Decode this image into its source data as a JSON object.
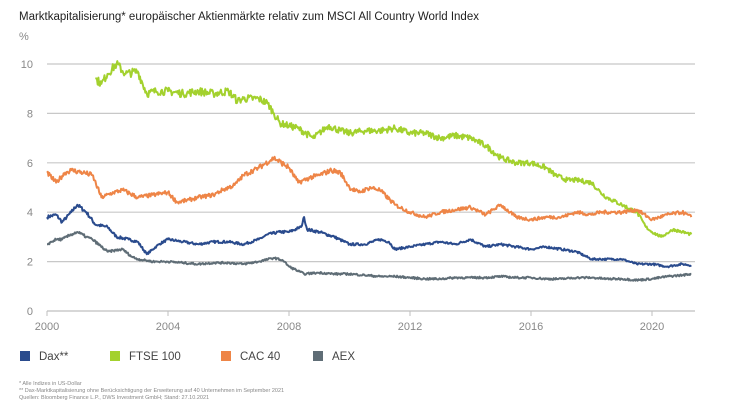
{
  "chart_data": {
    "type": "line",
    "title": "Marktkapitalisierung* europäischer Aktienmärkte relativ zum MSCI All Country World Index",
    "ylabel": "%",
    "xlabel": "",
    "xlim": [
      2000,
      2021.4
    ],
    "ylim": [
      0,
      10
    ],
    "yticks": [
      0,
      2,
      4,
      6,
      8,
      10
    ],
    "xticks": [
      2000,
      2004,
      2008,
      2012,
      2016,
      2020
    ],
    "grid": true,
    "legend_position": "bottom-left",
    "series": [
      {
        "name": "Dax**",
        "color": "#2a4b8d",
        "points": [
          [
            2000,
            3.8
          ],
          [
            2000.3,
            3.9
          ],
          [
            2000.5,
            3.6
          ],
          [
            2000.8,
            4.0
          ],
          [
            2001,
            4.3
          ],
          [
            2001.3,
            4.0
          ],
          [
            2001.6,
            3.5
          ],
          [
            2002,
            3.4
          ],
          [
            2002.3,
            3.0
          ],
          [
            2002.7,
            2.9
          ],
          [
            2003,
            2.8
          ],
          [
            2003.3,
            2.3
          ],
          [
            2003.7,
            2.7
          ],
          [
            2004,
            2.9
          ],
          [
            2004.5,
            2.8
          ],
          [
            2005,
            2.7
          ],
          [
            2005.5,
            2.8
          ],
          [
            2006,
            2.8
          ],
          [
            2006.5,
            2.7
          ],
          [
            2007,
            2.9
          ],
          [
            2007.3,
            3.1
          ],
          [
            2007.7,
            3.2
          ],
          [
            2008,
            3.2
          ],
          [
            2008.4,
            3.4
          ],
          [
            2008.5,
            3.8
          ],
          [
            2008.6,
            3.3
          ],
          [
            2009,
            3.2
          ],
          [
            2009.5,
            3.0
          ],
          [
            2010,
            2.7
          ],
          [
            2010.5,
            2.7
          ],
          [
            2011,
            2.9
          ],
          [
            2011.3,
            2.8
          ],
          [
            2011.5,
            2.5
          ],
          [
            2012,
            2.6
          ],
          [
            2012.5,
            2.7
          ],
          [
            2013,
            2.8
          ],
          [
            2013.5,
            2.7
          ],
          [
            2014,
            2.9
          ],
          [
            2014.5,
            2.6
          ],
          [
            2015,
            2.7
          ],
          [
            2015.5,
            2.6
          ],
          [
            2016,
            2.5
          ],
          [
            2016.5,
            2.6
          ],
          [
            2017,
            2.5
          ],
          [
            2017.5,
            2.4
          ],
          [
            2018,
            2.1
          ],
          [
            2018.5,
            2.1
          ],
          [
            2019,
            2.1
          ],
          [
            2019.5,
            1.9
          ],
          [
            2020,
            1.9
          ],
          [
            2020.5,
            1.8
          ],
          [
            2021,
            1.9
          ],
          [
            2021.3,
            1.85
          ]
        ]
      },
      {
        "name": "FTSE 100",
        "color": "#a3d12e",
        "points": [
          [
            2001.6,
            9.4
          ],
          [
            2001.8,
            9.2
          ],
          [
            2002,
            9.6
          ],
          [
            2002.3,
            10.0
          ],
          [
            2002.6,
            9.6
          ],
          [
            2003,
            9.7
          ],
          [
            2003.3,
            8.8
          ],
          [
            2003.6,
            8.9
          ],
          [
            2004,
            8.9
          ],
          [
            2004.5,
            8.8
          ],
          [
            2005,
            8.9
          ],
          [
            2005.5,
            8.8
          ],
          [
            2006,
            8.9
          ],
          [
            2006.3,
            8.5
          ],
          [
            2006.5,
            8.6
          ],
          [
            2007,
            8.6
          ],
          [
            2007.3,
            8.4
          ],
          [
            2007.5,
            8.0
          ],
          [
            2007.7,
            7.6
          ],
          [
            2008,
            7.5
          ],
          [
            2008.3,
            7.4
          ],
          [
            2008.8,
            7.0
          ],
          [
            2009.3,
            7.5
          ],
          [
            2009.7,
            7.3
          ],
          [
            2010,
            7.2
          ],
          [
            2010.5,
            7.3
          ],
          [
            2011,
            7.3
          ],
          [
            2011.5,
            7.4
          ],
          [
            2012,
            7.2
          ],
          [
            2012.5,
            7.2
          ],
          [
            2013,
            7.0
          ],
          [
            2013.5,
            7.1
          ],
          [
            2014,
            7.0
          ],
          [
            2014.5,
            6.7
          ],
          [
            2015,
            6.2
          ],
          [
            2015.5,
            6.0
          ],
          [
            2016,
            6.0
          ],
          [
            2016.5,
            5.8
          ],
          [
            2016.8,
            5.5
          ],
          [
            2017.2,
            5.3
          ],
          [
            2017.5,
            5.3
          ],
          [
            2018,
            5.2
          ],
          [
            2018.3,
            4.8
          ],
          [
            2018.5,
            4.6
          ],
          [
            2019,
            4.3
          ],
          [
            2019.5,
            4.0
          ],
          [
            2019.8,
            3.4
          ],
          [
            2020,
            3.2
          ],
          [
            2020.3,
            3.0
          ],
          [
            2020.7,
            3.3
          ],
          [
            2021,
            3.2
          ],
          [
            2021.3,
            3.1
          ]
        ]
      },
      {
        "name": "CAC 40",
        "color": "#ee8547",
        "points": [
          [
            2000,
            5.6
          ],
          [
            2000.3,
            5.2
          ],
          [
            2000.6,
            5.6
          ],
          [
            2000.8,
            5.7
          ],
          [
            2001.2,
            5.6
          ],
          [
            2001.5,
            5.5
          ],
          [
            2001.8,
            4.6
          ],
          [
            2002.2,
            4.8
          ],
          [
            2002.5,
            4.9
          ],
          [
            2003,
            4.6
          ],
          [
            2003.5,
            4.7
          ],
          [
            2004,
            4.8
          ],
          [
            2004.3,
            4.4
          ],
          [
            2004.7,
            4.5
          ],
          [
            2005,
            4.6
          ],
          [
            2005.5,
            4.7
          ],
          [
            2005.8,
            4.9
          ],
          [
            2006.2,
            5.1
          ],
          [
            2006.5,
            5.5
          ],
          [
            2007,
            5.8
          ],
          [
            2007.5,
            6.2
          ],
          [
            2008,
            5.8
          ],
          [
            2008.3,
            5.2
          ],
          [
            2008.7,
            5.4
          ],
          [
            2009,
            5.5
          ],
          [
            2009.4,
            5.7
          ],
          [
            2009.7,
            5.6
          ],
          [
            2010,
            5.0
          ],
          [
            2010.3,
            4.8
          ],
          [
            2010.7,
            5.0
          ],
          [
            2011,
            4.9
          ],
          [
            2011.5,
            4.3
          ],
          [
            2012,
            4.0
          ],
          [
            2012.5,
            3.8
          ],
          [
            2013,
            4.0
          ],
          [
            2013.5,
            4.1
          ],
          [
            2014,
            4.2
          ],
          [
            2014.5,
            3.9
          ],
          [
            2015,
            4.3
          ],
          [
            2015.5,
            3.8
          ],
          [
            2016,
            3.7
          ],
          [
            2016.5,
            3.8
          ],
          [
            2017,
            3.8
          ],
          [
            2017.5,
            4.0
          ],
          [
            2018,
            3.9
          ],
          [
            2018.3,
            4.0
          ],
          [
            2019,
            4.0
          ],
          [
            2019.5,
            4.1
          ],
          [
            2020,
            3.7
          ],
          [
            2020.5,
            3.9
          ],
          [
            2021,
            4.0
          ],
          [
            2021.3,
            3.8
          ]
        ]
      },
      {
        "name": "AEX",
        "color": "#5f6d76",
        "points": [
          [
            2000,
            2.7
          ],
          [
            2000.3,
            2.9
          ],
          [
            2000.5,
            2.9
          ],
          [
            2000.8,
            3.1
          ],
          [
            2001,
            3.2
          ],
          [
            2001.3,
            3.0
          ],
          [
            2001.5,
            2.9
          ],
          [
            2002,
            2.4
          ],
          [
            2002.5,
            2.5
          ],
          [
            2002.8,
            2.2
          ],
          [
            2003,
            2.1
          ],
          [
            2003.5,
            2.0
          ],
          [
            2004,
            2.0
          ],
          [
            2004.5,
            1.95
          ],
          [
            2005,
            1.9
          ],
          [
            2005.5,
            1.95
          ],
          [
            2006,
            1.95
          ],
          [
            2006.5,
            1.9
          ],
          [
            2007,
            2.0
          ],
          [
            2007.5,
            2.15
          ],
          [
            2007.8,
            2.05
          ],
          [
            2008,
            1.8
          ],
          [
            2008.5,
            1.5
          ],
          [
            2009,
            1.55
          ],
          [
            2009.5,
            1.5
          ],
          [
            2010,
            1.5
          ],
          [
            2010.5,
            1.45
          ],
          [
            2011,
            1.4
          ],
          [
            2011.5,
            1.4
          ],
          [
            2012,
            1.35
          ],
          [
            2012.5,
            1.3
          ],
          [
            2013,
            1.3
          ],
          [
            2013.5,
            1.35
          ],
          [
            2014,
            1.35
          ],
          [
            2014.5,
            1.35
          ],
          [
            2015,
            1.4
          ],
          [
            2015.5,
            1.35
          ],
          [
            2016,
            1.35
          ],
          [
            2016.5,
            1.3
          ],
          [
            2017,
            1.3
          ],
          [
            2017.5,
            1.35
          ],
          [
            2018,
            1.35
          ],
          [
            2018.5,
            1.3
          ],
          [
            2019,
            1.3
          ],
          [
            2019.5,
            1.25
          ],
          [
            2020,
            1.3
          ],
          [
            2020.5,
            1.4
          ],
          [
            2021,
            1.45
          ],
          [
            2021.3,
            1.5
          ]
        ]
      }
    ],
    "footnotes": [
      "* Alle Indizes in US-Dollar",
      "** Dax-Marktkapitalisierung ohne Berücksichtigung der Erweiterung auf 40 Unternehmen im September 2021",
      "Quellen: Bloomberg Finance L.P., DWS Investment GmbH; Stand: 27.10.2021"
    ]
  }
}
